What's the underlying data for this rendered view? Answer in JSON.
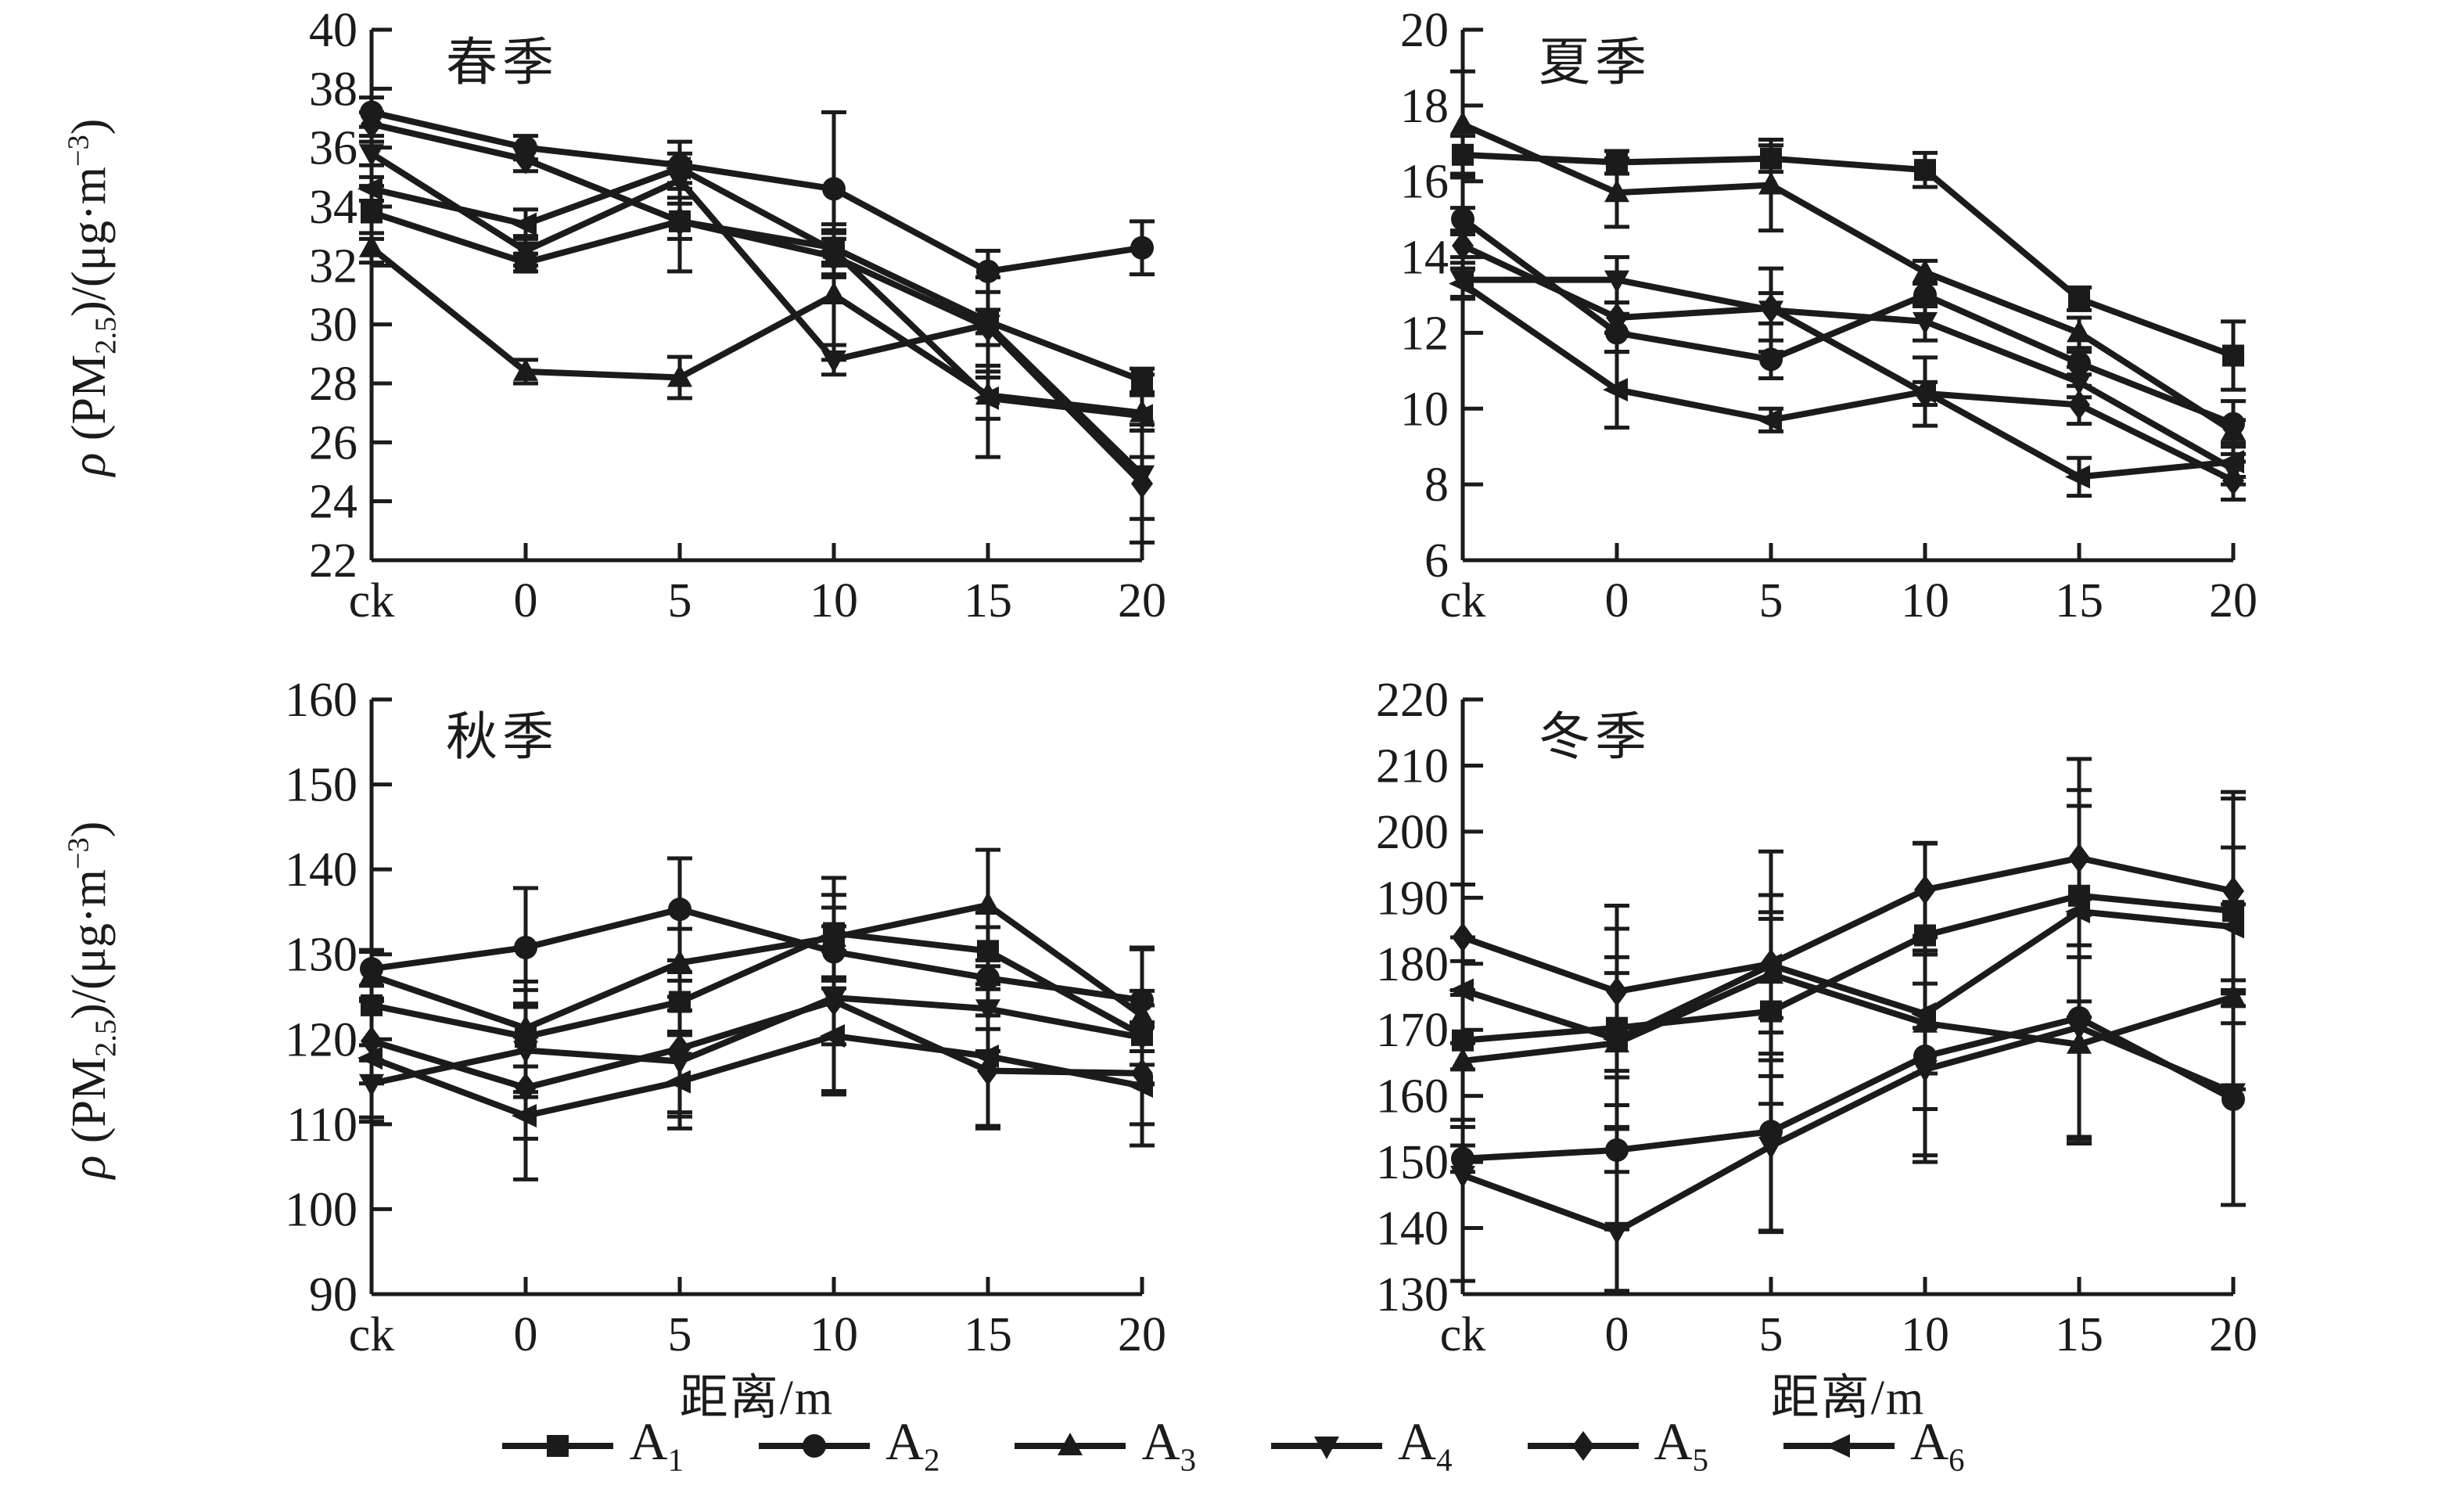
{
  "figure": {
    "background": "#ffffff",
    "ink_color": "#1b1b1b",
    "x_axis_label": "距离/m",
    "ylabel_segments": [
      {
        "t": "ρ",
        "italic": true
      },
      {
        "t": " (PM"
      },
      {
        "t": "2.5",
        "sub": true
      },
      {
        "t": ")/(μg·m"
      },
      {
        "t": "−3",
        "sup": true
      },
      {
        "t": ")"
      }
    ],
    "legend": [
      {
        "label": "A",
        "subscript": "1",
        "marker": "square"
      },
      {
        "label": "A",
        "subscript": "2",
        "marker": "circle"
      },
      {
        "label": "A",
        "subscript": "3",
        "marker": "triangle-up"
      },
      {
        "label": "A",
        "subscript": "4",
        "marker": "triangle-down"
      },
      {
        "label": "A",
        "subscript": "5",
        "marker": "diamond"
      },
      {
        "label": "A",
        "subscript": "6",
        "marker": "triangle-left"
      }
    ]
  },
  "chart_data": [
    {
      "type": "line",
      "season_key": "spring",
      "title": "春季",
      "categories": [
        "ck",
        "0",
        "5",
        "10",
        "15",
        "20"
      ],
      "ylim": [
        22,
        40
      ],
      "ytick_step": 2,
      "grid": false,
      "error_bars": true,
      "legend_position": "bottom-shared",
      "series": [
        {
          "name": "A1",
          "marker": "square",
          "values": [
            33.8,
            32.1,
            33.5,
            32.6,
            30.1,
            28.1
          ],
          "errors": [
            0.9,
            0.3,
            1.7,
            0.5,
            1.5,
            0.4
          ]
        },
        {
          "name": "A2",
          "marker": "circle",
          "values": [
            37.2,
            36.0,
            35.4,
            34.6,
            31.8,
            32.6
          ],
          "errors": [
            0.5,
            0.4,
            0.8,
            2.6,
            0.7,
            0.9
          ]
        },
        {
          "name": "A3",
          "marker": "triangle-up",
          "values": [
            32.6,
            28.4,
            28.2,
            31.0,
            27.6,
            27.0
          ],
          "errors": [
            0.5,
            0.4,
            0.7,
            2.2,
            2.1,
            0.6
          ]
        },
        {
          "name": "A4",
          "marker": "triangle-down",
          "values": [
            35.8,
            32.5,
            34.9,
            28.8,
            30.0,
            24.9
          ],
          "errors": [
            0.4,
            0.5,
            0.6,
            0.5,
            1.6,
            1.5
          ]
        },
        {
          "name": "A5",
          "marker": "diamond",
          "values": [
            36.8,
            35.6,
            33.5,
            32.3,
            29.9,
            24.6
          ],
          "errors": [
            0.4,
            0.4,
            0.6,
            0.6,
            0.6,
            2.0
          ]
        },
        {
          "name": "A6",
          "marker": "triangle-left",
          "values": [
            34.6,
            33.4,
            35.3,
            32.5,
            27.5,
            26.9
          ],
          "errors": [
            0.4,
            0.5,
            0.5,
            0.9,
            0.7,
            1.4
          ]
        }
      ]
    },
    {
      "type": "line",
      "season_key": "summer",
      "title": "夏季",
      "categories": [
        "ck",
        "0",
        "5",
        "10",
        "15",
        "20"
      ],
      "ylim": [
        6,
        20
      ],
      "ytick_step": 2,
      "grid": false,
      "error_bars": true,
      "legend_position": "bottom-shared",
      "series": [
        {
          "name": "A1",
          "marker": "square",
          "values": [
            16.7,
            16.5,
            16.6,
            16.3,
            12.9,
            11.4
          ],
          "errors": [
            0.5,
            0.3,
            0.35,
            0.45,
            0.3,
            0.9
          ]
        },
        {
          "name": "A2",
          "marker": "circle",
          "values": [
            15.0,
            12.0,
            11.3,
            13.0,
            11.2,
            9.6
          ],
          "errors": [
            0.3,
            0.5,
            0.5,
            0.3,
            0.3,
            0.6
          ]
        },
        {
          "name": "A3",
          "marker": "triangle-up",
          "values": [
            17.5,
            15.7,
            15.9,
            13.6,
            12.0,
            9.4
          ],
          "errors": [
            1.4,
            0.9,
            1.2,
            0.3,
            0.4,
            0.3
          ]
        },
        {
          "name": "A4",
          "marker": "triangle-down",
          "values": [
            13.4,
            13.4,
            12.6,
            12.3,
            10.7,
            8.4
          ],
          "errors": [
            0.45,
            0.6,
            1.1,
            0.5,
            0.4,
            0.4
          ]
        },
        {
          "name": "A5",
          "marker": "diamond",
          "values": [
            14.3,
            12.4,
            12.65,
            10.4,
            10.1,
            8.1
          ],
          "errors": [
            0.3,
            0.4,
            0.4,
            0.3,
            0.5,
            0.5
          ]
        },
        {
          "name": "A6",
          "marker": "triangle-left",
          "values": [
            13.3,
            10.5,
            9.7,
            10.45,
            8.2,
            8.6
          ],
          "errors": [
            0.4,
            1.0,
            0.3,
            0.9,
            0.5,
            0.4
          ]
        }
      ]
    },
    {
      "type": "line",
      "season_key": "autumn",
      "title": "秋季",
      "categories": [
        "ck",
        "0",
        "5",
        "10",
        "15",
        "20"
      ],
      "ylim": [
        90,
        160
      ],
      "ytick_step": 10,
      "grid": false,
      "error_bars": true,
      "legend_position": "bottom-shared",
      "series": [
        {
          "name": "A1",
          "marker": "square",
          "values": [
            124.0,
            120.3,
            124.4,
            132.5,
            130.4,
            120.5
          ],
          "errors": [
            6.5,
            6.5,
            3.5,
            6.5,
            4.5,
            3.5
          ]
        },
        {
          "name": "A2",
          "marker": "circle",
          "values": [
            128.3,
            130.8,
            135.3,
            130.3,
            127.2,
            124.6
          ],
          "errors": [
            2.0,
            7.0,
            6.0,
            3.0,
            6.0,
            6.0
          ]
        },
        {
          "name": "A3",
          "marker": "triangle-up",
          "values": [
            127.5,
            121.3,
            129.0,
            132.0,
            135.8,
            122.8
          ],
          "errors": [
            3.0,
            4.5,
            4.0,
            5.0,
            6.5,
            8.0
          ]
        },
        {
          "name": "A4",
          "marker": "triangle-down",
          "values": [
            114.8,
            118.7,
            117.4,
            124.9,
            123.6,
            120.2
          ],
          "errors": [
            4.5,
            5.5,
            6.0,
            5.5,
            5.0,
            5.5
          ]
        },
        {
          "name": "A5",
          "marker": "diamond",
          "values": [
            119.8,
            114.3,
            118.9,
            124.5,
            116.3,
            116.0
          ],
          "errors": [
            5.0,
            6.0,
            8.0,
            11.0,
            6.5,
            6.0
          ]
        },
        {
          "name": "A6",
          "marker": "triangle-left",
          "values": [
            117.8,
            111.0,
            115.0,
            120.4,
            118.0,
            114.5
          ],
          "errors": [
            7.0,
            7.5,
            5.5,
            6.5,
            8.5,
            7.0
          ]
        }
      ]
    },
    {
      "type": "line",
      "season_key": "winter",
      "title": "冬季",
      "categories": [
        "ck",
        "0",
        "5",
        "10",
        "15",
        "20"
      ],
      "ylim": [
        130,
        220
      ],
      "ytick_step": 10,
      "grid": false,
      "error_bars": true,
      "legend_position": "bottom-shared",
      "series": [
        {
          "name": "A1",
          "marker": "square",
          "values": [
            168.4,
            170.3,
            172.8,
            184.3,
            190.3,
            188.0
          ],
          "errors": [
            12,
            15,
            14,
            14,
            16,
            17
          ]
        },
        {
          "name": "A2",
          "marker": "circle",
          "values": [
            150.5,
            151.8,
            154.6,
            166.0,
            171.8,
            159.5
          ],
          "errors": [
            2,
            12,
            15,
            16,
            18,
            16
          ]
        },
        {
          "name": "A3",
          "marker": "triangle-up",
          "values": [
            165.3,
            168.0,
            178.4,
            171.0,
            167.8,
            175.0
          ],
          "errors": [
            10,
            13,
            12,
            13,
            15,
            14
          ]
        },
        {
          "name": "A4",
          "marker": "triangle-down",
          "values": [
            148.0,
            139.5,
            152.4,
            164.0,
            170.4,
            160.5
          ],
          "errors": [
            16,
            9,
            13,
            13,
            17,
            17
          ]
        },
        {
          "name": "A5",
          "marker": "diamond",
          "values": [
            184.0,
            175.8,
            180.0,
            191.2,
            196.0,
            191.0
          ],
          "errors": [
            8,
            13,
            17,
            7,
            15,
            15
          ]
        },
        {
          "name": "A6",
          "marker": "triangle-left",
          "values": [
            176.0,
            168.6,
            179.8,
            172.4,
            187.9,
            185.6
          ],
          "errors": [
            8,
            10,
            8,
            9,
            16,
            12
          ]
        }
      ]
    }
  ]
}
